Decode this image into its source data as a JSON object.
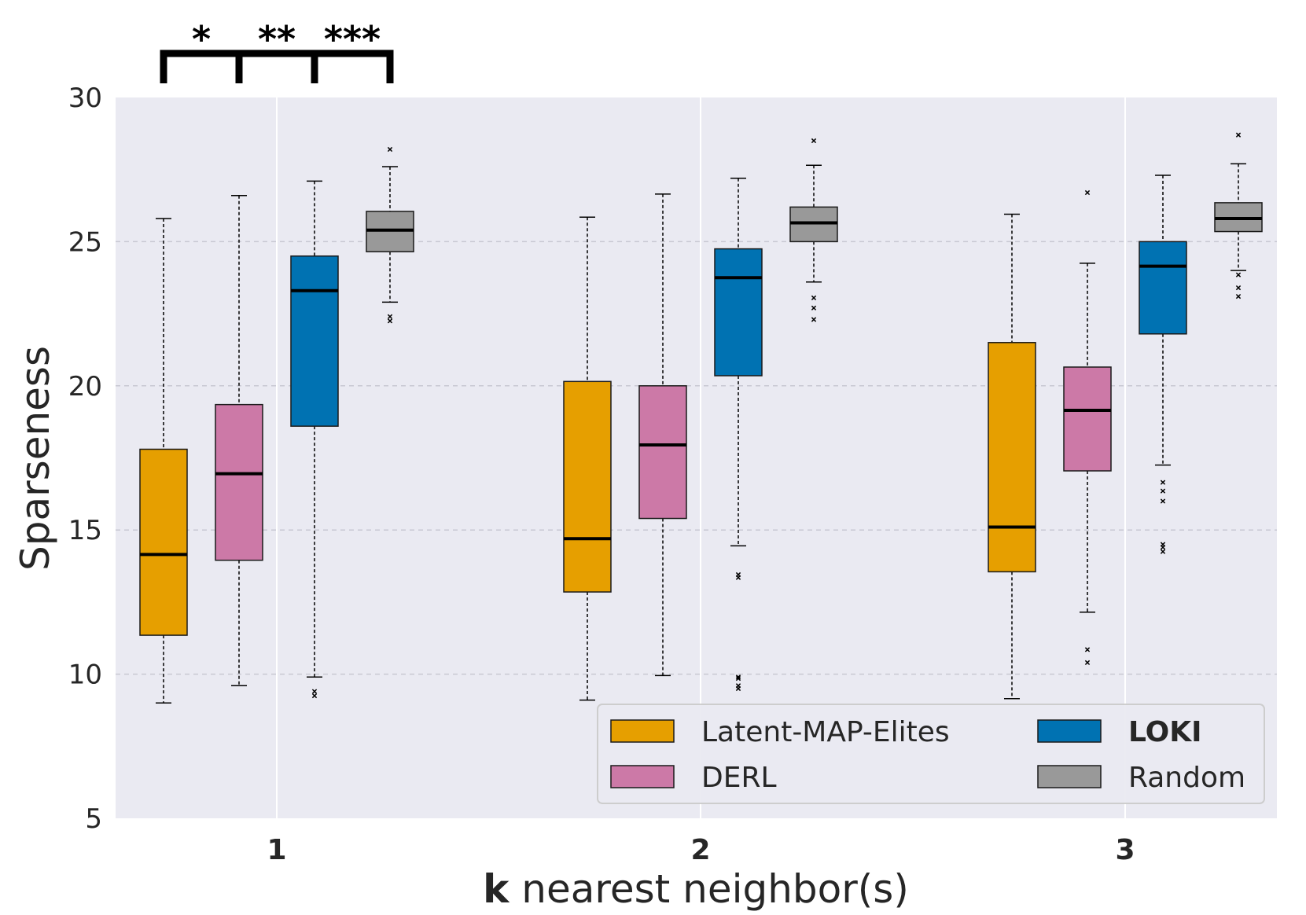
{
  "chart_data": {
    "type": "box",
    "title": "",
    "xlabel_bold": "k",
    "xlabel_rest": " nearest neighbor(s)",
    "ylabel": "Sparseness",
    "ylim": [
      5,
      30
    ],
    "yticks": [
      5,
      10,
      15,
      20,
      25,
      30
    ],
    "categories": [
      "1",
      "2",
      "3"
    ],
    "grid": true,
    "legend_position": "lower-right",
    "colors": {
      "background": "#eaeaf2",
      "latent_map_elites": "#e69f00",
      "derl": "#cc79a7",
      "loki": "#0072b2",
      "random": "#999999"
    },
    "series": [
      {
        "name": "Latent-MAP-Elites",
        "color": "#e69f00",
        "boxes": [
          {
            "whisker_low": 9.0,
            "q1": 11.35,
            "median": 14.15,
            "q3": 17.8,
            "whisker_high": 25.8,
            "outliers": []
          },
          {
            "whisker_low": 9.1,
            "q1": 12.85,
            "median": 14.7,
            "q3": 20.15,
            "whisker_high": 25.85,
            "outliers": []
          },
          {
            "whisker_low": 9.15,
            "q1": 13.55,
            "median": 15.1,
            "q3": 21.5,
            "whisker_high": 25.95,
            "outliers": []
          }
        ]
      },
      {
        "name": "DERL",
        "color": "#cc79a7",
        "boxes": [
          {
            "whisker_low": 9.6,
            "q1": 13.95,
            "median": 16.95,
            "q3": 19.35,
            "whisker_high": 26.6,
            "outliers": []
          },
          {
            "whisker_low": 9.95,
            "q1": 15.4,
            "median": 17.95,
            "q3": 20.0,
            "whisker_high": 26.65,
            "outliers": []
          },
          {
            "whisker_low": 12.15,
            "q1": 17.05,
            "median": 19.15,
            "q3": 20.65,
            "whisker_high": 24.25,
            "outliers": [
              10.4,
              10.85,
              26.7
            ]
          }
        ]
      },
      {
        "name": "LOKI",
        "bold": true,
        "color": "#0072b2",
        "boxes": [
          {
            "whisker_low": 9.9,
            "q1": 18.6,
            "median": 23.3,
            "q3": 24.5,
            "whisker_high": 27.1,
            "outliers": [
              9.25,
              9.4
            ]
          },
          {
            "whisker_low": 14.45,
            "q1": 20.35,
            "median": 23.75,
            "q3": 24.75,
            "whisker_high": 27.2,
            "outliers": [
              9.5,
              9.6,
              9.85,
              9.9,
              13.35,
              13.45
            ]
          },
          {
            "whisker_low": 17.25,
            "q1": 21.8,
            "median": 24.15,
            "q3": 25.0,
            "whisker_high": 27.3,
            "outliers": [
              14.25,
              14.4,
              14.5,
              16.0,
              16.35,
              16.65
            ]
          }
        ]
      },
      {
        "name": "Random",
        "color": "#999999",
        "boxes": [
          {
            "whisker_low": 22.9,
            "q1": 24.65,
            "median": 25.4,
            "q3": 26.05,
            "whisker_high": 27.6,
            "outliers": [
              22.25,
              22.4,
              28.2
            ]
          },
          {
            "whisker_low": 23.6,
            "q1": 25.0,
            "median": 25.65,
            "q3": 26.2,
            "whisker_high": 27.65,
            "outliers": [
              22.3,
              22.7,
              23.05,
              28.5
            ]
          },
          {
            "whisker_low": 24.0,
            "q1": 25.35,
            "median": 25.8,
            "q3": 26.35,
            "whisker_high": 27.7,
            "outliers": [
              23.1,
              23.4,
              23.85,
              28.7
            ]
          }
        ]
      }
    ],
    "significance": [
      "*",
      "**",
      "***"
    ]
  }
}
